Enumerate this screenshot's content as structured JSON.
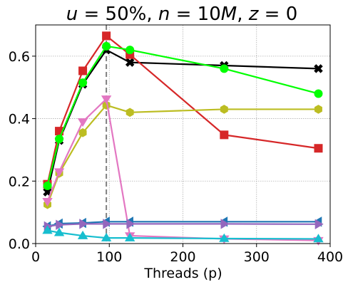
{
  "chart_data": {
    "type": "line",
    "title": "u = 50%, n = 10M, z = 0",
    "title_parts": [
      {
        "text": "u",
        "italic": true
      },
      {
        "text": " = 50%, ",
        "italic": false
      },
      {
        "text": "n",
        "italic": true
      },
      {
        "text": " = 10",
        "italic": false
      },
      {
        "text": "M",
        "italic": true
      },
      {
        "text": ", ",
        "italic": false
      },
      {
        "text": "z",
        "italic": true
      },
      {
        "text": " = 0",
        "italic": false
      }
    ],
    "xlabel": "Threads (p)",
    "ylabel": "",
    "xlim": [
      0,
      400
    ],
    "ylim": [
      0,
      0.7
    ],
    "xticks": [
      0,
      100,
      200,
      300,
      400
    ],
    "yticks": [
      0.0,
      0.2,
      0.4,
      0.6
    ],
    "xtick_labels": [
      "0",
      "100",
      "200",
      "300",
      "400"
    ],
    "ytick_labels": [
      "0.0",
      "0.2",
      "0.4",
      "0.6"
    ],
    "grid": true,
    "vline": {
      "x": 96,
      "color": "#808080",
      "style": "dashed"
    },
    "x": [
      16,
      32,
      64,
      96,
      128,
      256,
      384
    ],
    "series": [
      {
        "color": "#000000",
        "marker": "x",
        "values": [
          0.165,
          0.33,
          0.51,
          0.62,
          0.58,
          0.57,
          0.56
        ]
      },
      {
        "color": "#d62728",
        "marker": "s",
        "values": [
          0.19,
          0.36,
          0.553,
          0.665,
          0.605,
          0.348,
          0.305
        ]
      },
      {
        "color": "#00ff00",
        "marker": "o",
        "values": [
          0.185,
          0.335,
          0.515,
          0.632,
          0.62,
          0.56,
          0.48
        ]
      },
      {
        "color": "#bcbd22",
        "marker": "h",
        "values": [
          0.125,
          0.225,
          0.355,
          0.443,
          0.42,
          0.43,
          0.43
        ]
      },
      {
        "color": "#e377c2",
        "marker": "v",
        "values": [
          0.135,
          0.23,
          0.39,
          0.463,
          0.025,
          0.015,
          0.01
        ]
      },
      {
        "color": "#1f77b4",
        "marker": "<",
        "values": [
          0.055,
          0.064,
          0.066,
          0.07,
          0.07,
          0.07,
          0.07
        ]
      },
      {
        "color": "#9467bd",
        "marker": ">",
        "values": [
          0.055,
          0.06,
          0.063,
          0.063,
          0.063,
          0.063,
          0.062
        ]
      },
      {
        "color": "#17becf",
        "marker": "^",
        "values": [
          0.042,
          0.035,
          0.025,
          0.018,
          0.018,
          0.016,
          0.015
        ]
      }
    ]
  }
}
